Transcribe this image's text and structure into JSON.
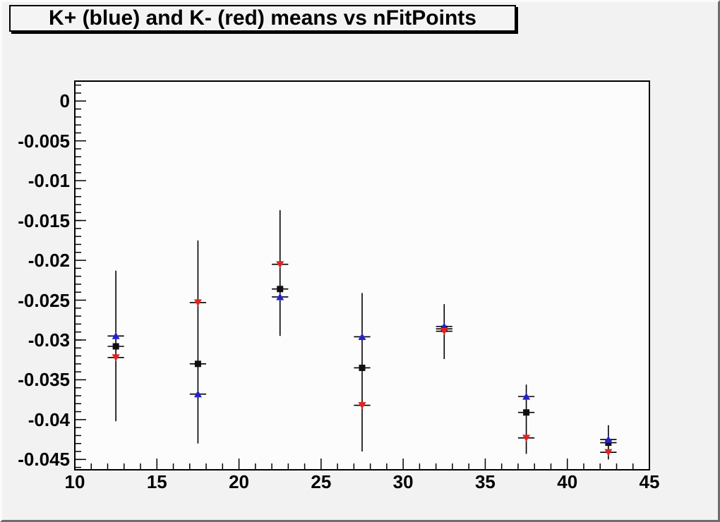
{
  "title": "K+ (blue) and K- (red) means vs nFitPoints",
  "colors": {
    "canvas_bg": "#f2f2f2",
    "frame_bg": "#fcfcfc",
    "axis": "#000000",
    "kplus_blue": "#2323cd",
    "kminus_red": "#e32222",
    "mean_black": "#101010"
  },
  "chart_data": {
    "type": "scatter",
    "title": "K+ (blue) and K- (red) means vs nFitPoints",
    "xlabel": "nFitPoints",
    "ylabel": "",
    "grid": false,
    "legend": "none",
    "xlim": [
      10,
      45
    ],
    "ylim": [
      -0.0463,
      0.0025
    ],
    "x_tick_values": [
      10,
      15,
      20,
      25,
      30,
      35,
      40,
      45
    ],
    "x_tick_labels": [
      "10",
      "15",
      "20",
      "25",
      "30",
      "35",
      "40",
      "45"
    ],
    "y_tick_values": [
      0,
      -0.005,
      -0.01,
      -0.015,
      -0.02,
      -0.025,
      -0.03,
      -0.035,
      -0.04,
      -0.045
    ],
    "y_tick_labels": [
      "0",
      "-0.005",
      "-0.01",
      "-0.015",
      "-0.02",
      "-0.025",
      "-0.03",
      "-0.035",
      "-0.04",
      "-0.045"
    ],
    "x_minor_step": 1,
    "y_minor_step": 0.001,
    "x": [
      12.5,
      17.5,
      22.5,
      27.5,
      32.5,
      37.5,
      42.5
    ],
    "x_half_width": 0.5,
    "series": [
      {
        "name": "mean (black square)",
        "marker": "square",
        "color": "#101010",
        "values": [
          -0.0308,
          -0.033,
          -0.0236,
          -0.0335,
          -0.0286,
          -0.0391,
          -0.0429
        ]
      },
      {
        "name": "K+ mean (blue triangle up)",
        "marker": "triangle-up",
        "color": "#2323cd",
        "values": [
          -0.0295,
          -0.0368,
          -0.0246,
          -0.0296,
          -0.0283,
          -0.0371,
          -0.0425
        ]
      },
      {
        "name": "K- mean (red triangle down)",
        "marker": "triangle-down",
        "color": "#e32222",
        "values": [
          -0.0322,
          -0.0253,
          -0.0205,
          -0.0382,
          -0.0289,
          -0.0423,
          -0.0441
        ]
      }
    ],
    "error_bars": [
      {
        "x": 12.5,
        "low": -0.0402,
        "high": -0.0213
      },
      {
        "x": 17.5,
        "low": -0.043,
        "high": -0.0175
      },
      {
        "x": 22.5,
        "low": -0.0295,
        "high": -0.0137
      },
      {
        "x": 27.5,
        "low": -0.044,
        "high": -0.0241
      },
      {
        "x": 32.5,
        "low": -0.0324,
        "high": -0.0255
      },
      {
        "x": 37.5,
        "low": -0.0443,
        "high": -0.0356
      },
      {
        "x": 42.5,
        "low": -0.045,
        "high": -0.0407
      }
    ]
  }
}
